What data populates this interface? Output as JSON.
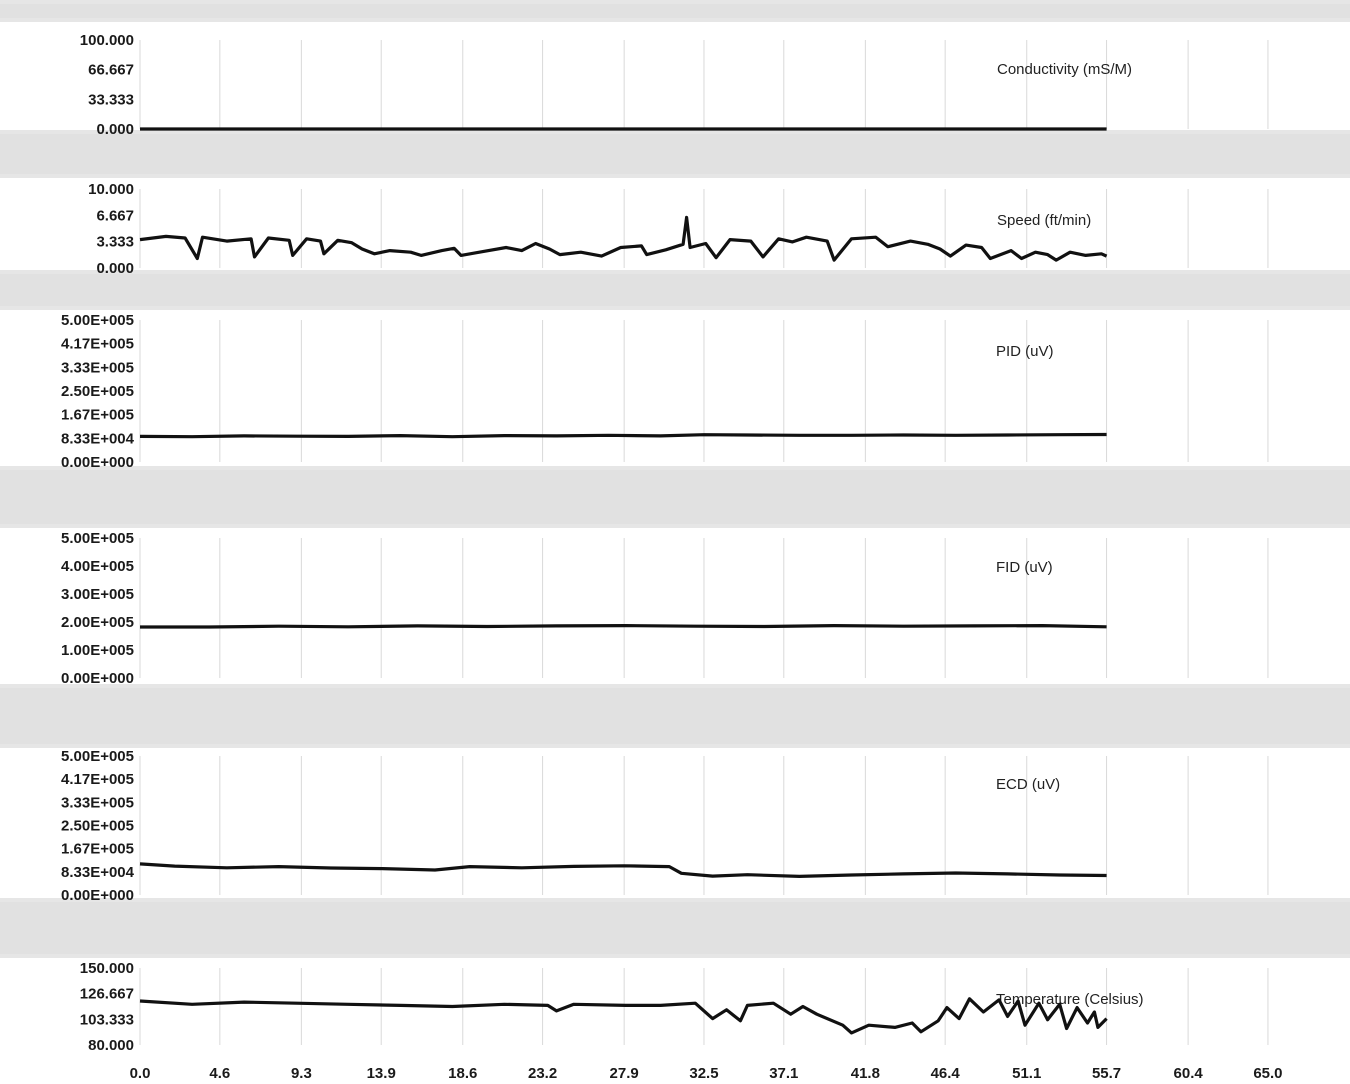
{
  "chart_data": {
    "type": "line",
    "x_ticks": [
      "0.0",
      "4.6",
      "9.3",
      "13.9",
      "18.6",
      "23.2",
      "27.9",
      "32.5",
      "37.1",
      "41.8",
      "46.4",
      "51.1",
      "55.7",
      "60.4",
      "65.0"
    ],
    "xlim": [
      0,
      68
    ],
    "x_end": 55.7,
    "grid": true,
    "background_bands": true,
    "series_color": "#111111",
    "panels": [
      {
        "label": "Conductivity (mS/M)",
        "yticks": [
          "100.000",
          "66.667",
          "33.333",
          "0.000"
        ],
        "ylim": [
          0,
          100
        ],
        "points": [
          [
            0,
            0.0
          ],
          [
            55.7,
            0.0
          ]
        ]
      },
      {
        "label": "Speed (ft/min)",
        "yticks": [
          "10.000",
          "6.667",
          "3.333",
          "0.000"
        ],
        "ylim": [
          0,
          10
        ],
        "points": [
          [
            0,
            3.6
          ],
          [
            1.5,
            4.0
          ],
          [
            2.6,
            3.8
          ],
          [
            3.3,
            1.2
          ],
          [
            3.6,
            3.9
          ],
          [
            5.0,
            3.4
          ],
          [
            6.4,
            3.7
          ],
          [
            6.6,
            1.4
          ],
          [
            7.4,
            3.8
          ],
          [
            8.6,
            3.5
          ],
          [
            8.8,
            1.6
          ],
          [
            9.6,
            3.7
          ],
          [
            10.4,
            3.4
          ],
          [
            10.6,
            1.8
          ],
          [
            11.4,
            3.5
          ],
          [
            12.2,
            3.2
          ],
          [
            12.8,
            2.4
          ],
          [
            13.5,
            1.8
          ],
          [
            14.4,
            2.2
          ],
          [
            15.6,
            2.0
          ],
          [
            16.2,
            1.6
          ],
          [
            17.4,
            2.2
          ],
          [
            18.1,
            2.5
          ],
          [
            18.5,
            1.6
          ],
          [
            19.8,
            2.1
          ],
          [
            21.1,
            2.6
          ],
          [
            22.0,
            2.2
          ],
          [
            22.8,
            3.1
          ],
          [
            23.6,
            2.4
          ],
          [
            24.2,
            1.7
          ],
          [
            25.4,
            2.0
          ],
          [
            26.6,
            1.5
          ],
          [
            27.7,
            2.6
          ],
          [
            28.9,
            2.8
          ],
          [
            29.2,
            1.7
          ],
          [
            30.3,
            2.3
          ],
          [
            31.3,
            3.0
          ],
          [
            31.5,
            6.4
          ],
          [
            31.7,
            2.6
          ],
          [
            32.6,
            3.1
          ],
          [
            33.2,
            1.3
          ],
          [
            34.0,
            3.6
          ],
          [
            35.2,
            3.4
          ],
          [
            35.9,
            1.4
          ],
          [
            36.8,
            3.7
          ],
          [
            37.6,
            3.3
          ],
          [
            38.4,
            3.9
          ],
          [
            39.6,
            3.4
          ],
          [
            40.0,
            1.0
          ],
          [
            41.0,
            3.7
          ],
          [
            42.4,
            3.9
          ],
          [
            43.1,
            2.7
          ],
          [
            44.4,
            3.4
          ],
          [
            45.4,
            3.0
          ],
          [
            46.1,
            2.4
          ],
          [
            46.7,
            1.5
          ],
          [
            47.6,
            2.9
          ],
          [
            48.5,
            2.6
          ],
          [
            49.0,
            1.2
          ],
          [
            50.2,
            2.2
          ],
          [
            50.8,
            1.2
          ],
          [
            51.6,
            2.0
          ],
          [
            52.3,
            1.7
          ],
          [
            52.8,
            1.0
          ],
          [
            53.6,
            2.0
          ],
          [
            54.5,
            1.6
          ],
          [
            55.4,
            1.8
          ],
          [
            55.7,
            1.5
          ]
        ]
      },
      {
        "label": "PID (uV)",
        "yticks": [
          "5.00E+005",
          "4.17E+005",
          "3.33E+005",
          "2.50E+005",
          "1.67E+005",
          "8.33E+004",
          "0.00E+000"
        ],
        "ylim": [
          0,
          500000
        ],
        "points": [
          [
            0,
            90000
          ],
          [
            3.0,
            89000
          ],
          [
            6.0,
            92000
          ],
          [
            9.0,
            91000
          ],
          [
            12.0,
            90000
          ],
          [
            15.0,
            93000
          ],
          [
            18.0,
            89000
          ],
          [
            21.0,
            93000
          ],
          [
            24.0,
            92000
          ],
          [
            27.0,
            94000
          ],
          [
            30.0,
            92000
          ],
          [
            32.5,
            96000
          ],
          [
            35.0,
            95000
          ],
          [
            38.0,
            94000
          ],
          [
            41.0,
            94000
          ],
          [
            44.0,
            95000
          ],
          [
            47.0,
            94000
          ],
          [
            50.0,
            95000
          ],
          [
            53.0,
            96000
          ],
          [
            55.7,
            97000
          ]
        ]
      },
      {
        "label": "FID (uV)",
        "yticks": [
          "5.00E+005",
          "4.00E+005",
          "3.00E+005",
          "2.00E+005",
          "1.00E+005",
          "0.00E+000"
        ],
        "ylim": [
          0,
          500000
        ],
        "points": [
          [
            0,
            182000
          ],
          [
            4.0,
            182000
          ],
          [
            8.0,
            185000
          ],
          [
            12.0,
            183000
          ],
          [
            16.0,
            186000
          ],
          [
            20.0,
            184000
          ],
          [
            24.0,
            186000
          ],
          [
            28.0,
            187000
          ],
          [
            32.0,
            185000
          ],
          [
            36.0,
            184000
          ],
          [
            40.0,
            187000
          ],
          [
            44.0,
            185000
          ],
          [
            48.0,
            186000
          ],
          [
            52.0,
            187000
          ],
          [
            55.7,
            183000
          ]
        ]
      },
      {
        "label": "ECD (uV)",
        "yticks": [
          "5.00E+005",
          "4.17E+005",
          "3.33E+005",
          "2.50E+005",
          "1.67E+005",
          "8.33E+004",
          "0.00E+000"
        ],
        "ylim": [
          0,
          500000
        ],
        "points": [
          [
            0,
            112000
          ],
          [
            2.0,
            104000
          ],
          [
            5.0,
            98000
          ],
          [
            8.0,
            102000
          ],
          [
            11.0,
            97000
          ],
          [
            14.0,
            95000
          ],
          [
            17.0,
            90000
          ],
          [
            19.0,
            102000
          ],
          [
            22.0,
            98000
          ],
          [
            25.0,
            103000
          ],
          [
            27.9,
            105000
          ],
          [
            30.5,
            102000
          ],
          [
            31.2,
            78000
          ],
          [
            33.0,
            68000
          ],
          [
            35.0,
            73000
          ],
          [
            38.0,
            67000
          ],
          [
            41.0,
            72000
          ],
          [
            44.0,
            76000
          ],
          [
            47.0,
            79000
          ],
          [
            50.0,
            76000
          ],
          [
            53.0,
            72000
          ],
          [
            55.7,
            70000
          ]
        ]
      },
      {
        "label": "Temperature (Celsius)",
        "yticks": [
          "150.000",
          "126.667",
          "103.333",
          "80.000"
        ],
        "ylim": [
          80,
          150
        ],
        "points": [
          [
            0,
            120
          ],
          [
            3.0,
            117
          ],
          [
            6.0,
            119
          ],
          [
            9.0,
            118
          ],
          [
            12.0,
            117
          ],
          [
            15.0,
            116
          ],
          [
            18.0,
            115
          ],
          [
            21.0,
            117
          ],
          [
            23.5,
            116
          ],
          [
            24.0,
            111
          ],
          [
            25.0,
            117
          ],
          [
            28.0,
            116
          ],
          [
            30.0,
            116
          ],
          [
            32.0,
            118
          ],
          [
            33.0,
            104
          ],
          [
            33.8,
            112
          ],
          [
            34.6,
            102
          ],
          [
            35.0,
            116
          ],
          [
            36.5,
            118
          ],
          [
            37.5,
            108
          ],
          [
            38.2,
            115
          ],
          [
            39.0,
            108
          ],
          [
            40.5,
            98
          ],
          [
            41.0,
            91
          ],
          [
            42.0,
            98
          ],
          [
            43.5,
            96
          ],
          [
            44.5,
            100
          ],
          [
            45.0,
            92
          ],
          [
            46.0,
            102
          ],
          [
            46.5,
            114
          ],
          [
            47.2,
            104
          ],
          [
            47.8,
            122
          ],
          [
            48.6,
            110
          ],
          [
            49.5,
            121
          ],
          [
            50.0,
            106
          ],
          [
            50.6,
            120
          ],
          [
            51.0,
            98
          ],
          [
            51.8,
            118
          ],
          [
            52.3,
            103
          ],
          [
            53.0,
            117
          ],
          [
            53.4,
            95
          ],
          [
            54.0,
            114
          ],
          [
            54.6,
            100
          ],
          [
            55.0,
            110
          ],
          [
            55.2,
            96
          ],
          [
            55.7,
            104
          ]
        ]
      }
    ]
  }
}
